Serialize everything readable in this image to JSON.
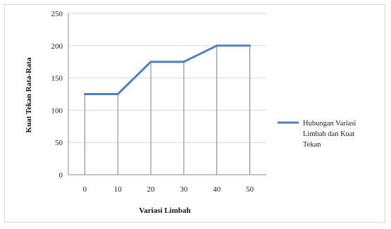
{
  "chart_data": {
    "type": "line",
    "categories": [
      "0",
      "10",
      "20",
      "30",
      "40",
      "50"
    ],
    "series": [
      {
        "name": "Hubungan Variasi Limbah dan Kuat Tekan",
        "values": [
          125,
          125,
          175,
          175,
          200,
          200
        ],
        "color": "#4f81bd"
      }
    ],
    "xlabel": "Variasi Limbah",
    "ylabel": "Kuat Tekan Rata-Rata",
    "ylim": [
      0,
      250
    ],
    "yticks": [
      0,
      50,
      100,
      150,
      200,
      250
    ],
    "grid": true,
    "drop_lines": true,
    "legend_position": "right"
  },
  "legend": {
    "lines": [
      "Hubungan Variasi",
      "Limbah dan Kuat",
      "Tekan"
    ]
  }
}
